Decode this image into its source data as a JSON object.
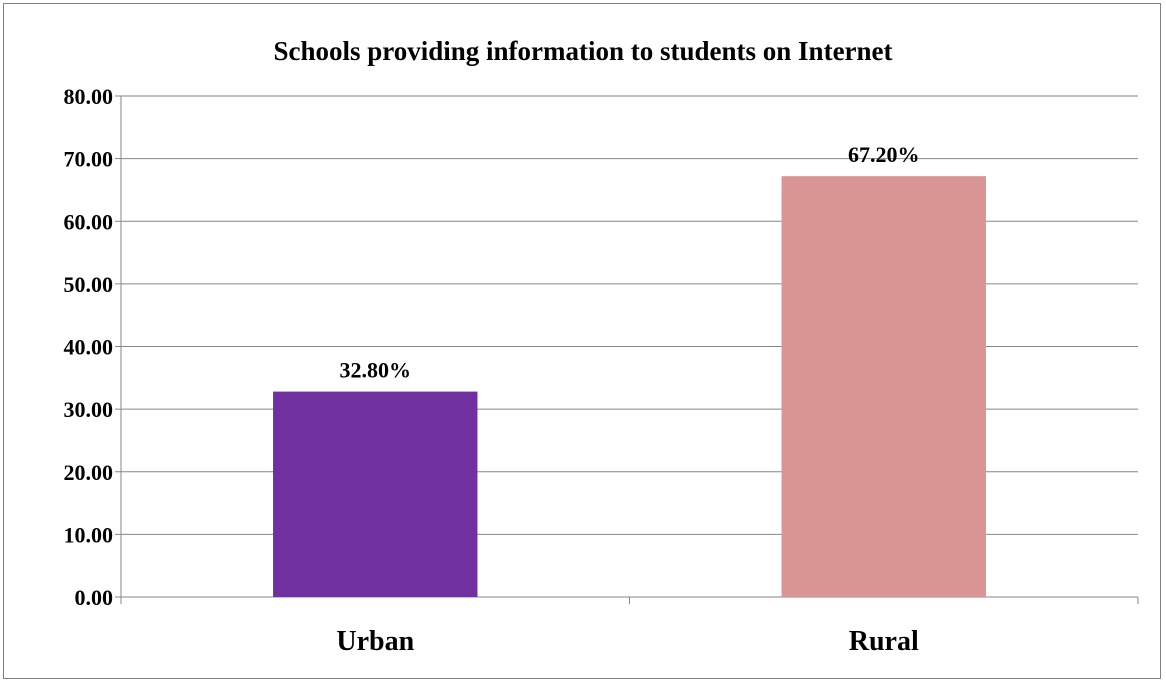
{
  "chart_data": {
    "type": "bar",
    "title": "Schools providing information to students on Internet",
    "xlabel": "",
    "ylabel": "",
    "categories": [
      "Urban",
      "Rural"
    ],
    "values": [
      32.8,
      67.2
    ],
    "data_labels": [
      "32.80%",
      "67.20%"
    ],
    "bar_colors": [
      "#7030a0",
      "#d99594"
    ],
    "ylim": [
      0,
      80
    ],
    "y_ticks": [
      0,
      10,
      20,
      30,
      40,
      50,
      60,
      70,
      80
    ],
    "y_tick_labels": [
      "0.00",
      "10.00",
      "20.00",
      "30.00",
      "40.00",
      "50.00",
      "60.00",
      "70.00",
      "80.00"
    ],
    "grid": true,
    "legend": "none"
  }
}
